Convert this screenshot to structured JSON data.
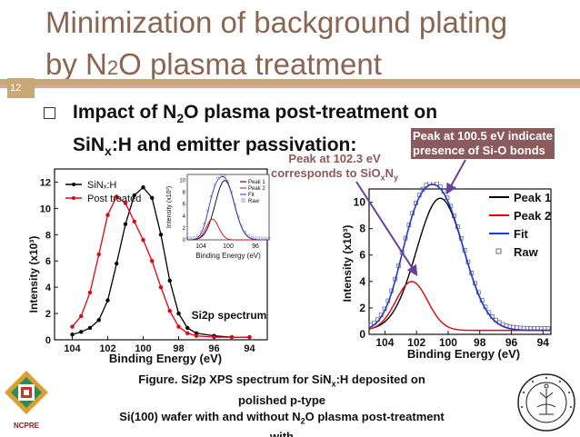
{
  "slide": {
    "number": "12",
    "title_line1": "Minimization of background plating",
    "title_line2_a": "by N",
    "title_line2_sub": "2",
    "title_line2_b": "O plasma treatment"
  },
  "bullet": {
    "l1_a": "Impact of N",
    "l1_sub": "2",
    "l1_b": "O plasma post-treatment on",
    "l2_a": "SiN",
    "l2_sub": "x",
    "l2_b": ":H and emitter passivation:"
  },
  "annotations": {
    "a1_line1": "Peak at 100.5 eV indicate",
    "a1_line2": "presence of Si-O bonds",
    "a2_line1": "Peak at 102.3 eV",
    "a2_line2_a": "corresponds to SiO",
    "a2_sub1": "x",
    "a2_mid": "N",
    "a2_sub2": "y"
  },
  "caption": {
    "l1_a": "Figure. Si2p XPS spectrum for SiN",
    "l1_sub": "x",
    "l1_b": ":H  deposited on",
    "l2": "polished  p-type",
    "l3_a": "Si(100) wafer with and without N",
    "l3_sub": "2",
    "l3_b": "O plasma post-treatment",
    "l4": "with"
  },
  "logos": {
    "left_text": "NCPRE"
  },
  "chart_data": [
    {
      "type": "line",
      "title": "Si2p spectrum",
      "xlabel": "Binding Energy (eV)",
      "ylabel": "Intensity (x10³)",
      "x_ticks": [
        "104",
        "102",
        "100",
        "98",
        "96",
        "94"
      ],
      "y_ticks": [
        "0",
        "2",
        "4",
        "6",
        "8",
        "10",
        "12"
      ],
      "xlim": [
        105,
        93
      ],
      "ylim": [
        0,
        13
      ],
      "legend_position": "top-left",
      "series": [
        {
          "name": "SiNₓ:H",
          "color": "#000000",
          "x": [
            104,
            103.5,
            103,
            102.5,
            102,
            101.5,
            101,
            100.5,
            100,
            99.5,
            99,
            98.5,
            98,
            97.5,
            97,
            96,
            95,
            94
          ],
          "y": [
            0.4,
            0.6,
            0.9,
            1.5,
            3.0,
            5.8,
            8.8,
            11.0,
            11.6,
            10.8,
            8.0,
            4.5,
            2.0,
            0.9,
            0.5,
            0.3,
            0.2,
            0.2
          ]
        },
        {
          "name": "Post treated",
          "color": "#e8000b",
          "x": [
            104,
            103.5,
            103,
            102.5,
            102,
            101.5,
            101,
            100.5,
            100,
            99.5,
            99,
            98.5,
            98,
            97.5,
            97,
            96,
            95,
            94
          ],
          "y": [
            1.0,
            1.8,
            3.6,
            6.5,
            9.5,
            10.9,
            10.4,
            9.0,
            7.6,
            6.0,
            4.0,
            2.2,
            1.0,
            0.5,
            0.3,
            0.2,
            0.2,
            0.2
          ]
        }
      ]
    },
    {
      "type": "line",
      "inset": true,
      "xlabel": "Binding Energy (eV)",
      "ylabel": "Intensity (x10³)",
      "x_ticks": [
        "104",
        "100",
        "96"
      ],
      "y_ticks": [
        "0",
        "2",
        "4",
        "6",
        "8",
        "10"
      ],
      "series": [
        {
          "name": "Peak 1",
          "color": "#000000"
        },
        {
          "name": "Peak 2",
          "color": "#e8000b"
        },
        {
          "name": "Fit",
          "color": "#1f3bd6"
        },
        {
          "name": "Raw",
          "color": "#6a6a8a"
        }
      ]
    },
    {
      "type": "line",
      "xlabel": "Binding Energy (eV)",
      "ylabel": "Intensity (x10³)",
      "x_ticks": [
        "104",
        "102",
        "100",
        "98",
        "96",
        "94"
      ],
      "y_ticks": [
        "0",
        "2",
        "4",
        "6",
        "8",
        "10"
      ],
      "xlim": [
        105,
        93.5
      ],
      "ylim": [
        0,
        11
      ],
      "legend_position": "top-right",
      "series": [
        {
          "name": "Peak 1",
          "color": "#000000",
          "center": 100.5,
          "height": 10.0,
          "width": 1.5
        },
        {
          "name": "Peak 2",
          "color": "#e8000b",
          "center": 102.3,
          "height": 3.7,
          "width": 1.0
        },
        {
          "name": "Fit",
          "color": "#1f3bd6"
        },
        {
          "name": "Raw",
          "color": "#6a6a8a"
        }
      ]
    }
  ]
}
